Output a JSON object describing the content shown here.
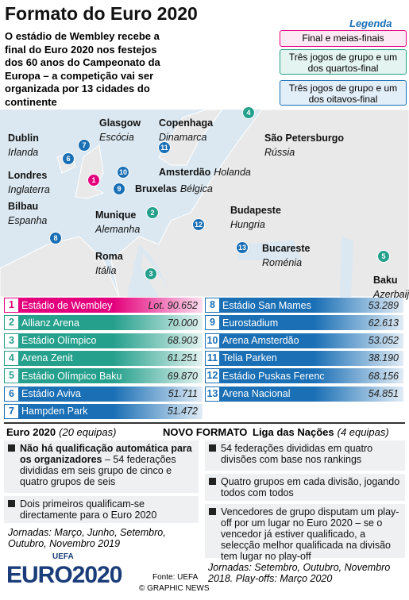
{
  "header": {
    "title": "Formato do Euro 2020",
    "intro": "O estádio de Wembley recebe a final do Euro 2020 nos festejos dos 60 anos do Campeonato da Europa – a competição vai ser organizada por 13 cidades do continente"
  },
  "legend": {
    "title": "Legenda",
    "items": [
      "Final e meias-finais",
      "Três jogos de grupo e um dos quartos-final",
      "Três jogos de grupo e um dos oitavos-final"
    ]
  },
  "cities": [
    {
      "number": 1,
      "city": "Londres",
      "country": "Inglaterra"
    },
    {
      "number": 2,
      "city": "Munique",
      "country": "Alemanha"
    },
    {
      "number": 3,
      "city": "Roma",
      "country": "Itália"
    },
    {
      "number": 4,
      "city": "São Petersburgo",
      "country": "Rússia"
    },
    {
      "number": 5,
      "city": "Baku",
      "country": "Azerbaijão"
    },
    {
      "number": 6,
      "city": "Dublin",
      "country": "Irlanda"
    },
    {
      "number": 7,
      "city": "Glasgow",
      "country": "Escócia"
    },
    {
      "number": 8,
      "city": "Bilbau",
      "country": "Espanha"
    },
    {
      "number": 9,
      "city": "Bruxelas",
      "country": "Bélgica"
    },
    {
      "number": 10,
      "city": "Amsterdão",
      "country": "Holanda"
    },
    {
      "number": 11,
      "city": "Copenhaga",
      "country": "Dinamarca"
    },
    {
      "number": 12,
      "city": "Budapeste",
      "country": "Hungria"
    },
    {
      "number": 13,
      "city": "Bucareste",
      "country": "Roménia"
    }
  ],
  "stadiums": [
    {
      "number": 1,
      "name": "Estádio de Wembley",
      "capacity": "Lot. 90.652"
    },
    {
      "number": 2,
      "name": "Allianz Arena",
      "capacity": "70.000"
    },
    {
      "number": 3,
      "name": "Estádio Olímpico",
      "capacity": "68.903"
    },
    {
      "number": 4,
      "name": "Arena Zenit",
      "capacity": "61.251"
    },
    {
      "number": 5,
      "name": "Estádio Olímpico Baku",
      "capacity": "69.870"
    },
    {
      "number": 6,
      "name": "Estádio Aviva",
      "capacity": "51.711"
    },
    {
      "number": 7,
      "name": "Hampden Park",
      "capacity": "51.472"
    },
    {
      "number": 8,
      "name": "Estádio San Mames",
      "capacity": "53.289"
    },
    {
      "number": 9,
      "name": "Eurostadium",
      "capacity": "62.613"
    },
    {
      "number": 10,
      "name": "Arena Amsterdão",
      "capacity": "53.052"
    },
    {
      "number": 11,
      "name": "Telia Parken",
      "capacity": "38.190"
    },
    {
      "number": 12,
      "name": "Estádio Puskas Ferenc",
      "capacity": "68.156"
    },
    {
      "number": 13,
      "name": "Arena Nacional",
      "capacity": "54.851"
    }
  ],
  "euro": {
    "title": "Euro 2020",
    "teams": "(20 equipas)",
    "items": [
      {
        "bold": "Não há qualificação automática para os organizadores",
        "text": " – 54 federações divididas em seis grupo de cinco e quatro grupos de seis"
      },
      {
        "text": "Dois primeiros qualificam-se directamente para o Euro 2020"
      }
    ],
    "dates": "Jornadas: Março, Junho, Setembro, Outubro, Novembro 2019"
  },
  "new_format": "NOVO FORMATO",
  "nations": {
    "title": "Liga das Nações",
    "teams": "(4 equipas)",
    "items": [
      "54 federações divididas em quatro divisões com base nos rankings",
      "Quatro grupos em cada divisão, jogando todos com todos",
      "Vencedores de grupo disputam um play-off por um lugar no Euro 2020 – se o vencedor já estiver qualificado, a selecção melhor qualificada na divisão tem lugar no play-off"
    ],
    "dates": "Jornadas: Setembro, Outubro, Novembro 2018. Play-offs: Março 2020"
  },
  "footer": {
    "logo_top": "UEFA",
    "logo": "EURO2020",
    "source": "Fonte: UEFA",
    "credit": "© GRAPHIC NEWS"
  }
}
